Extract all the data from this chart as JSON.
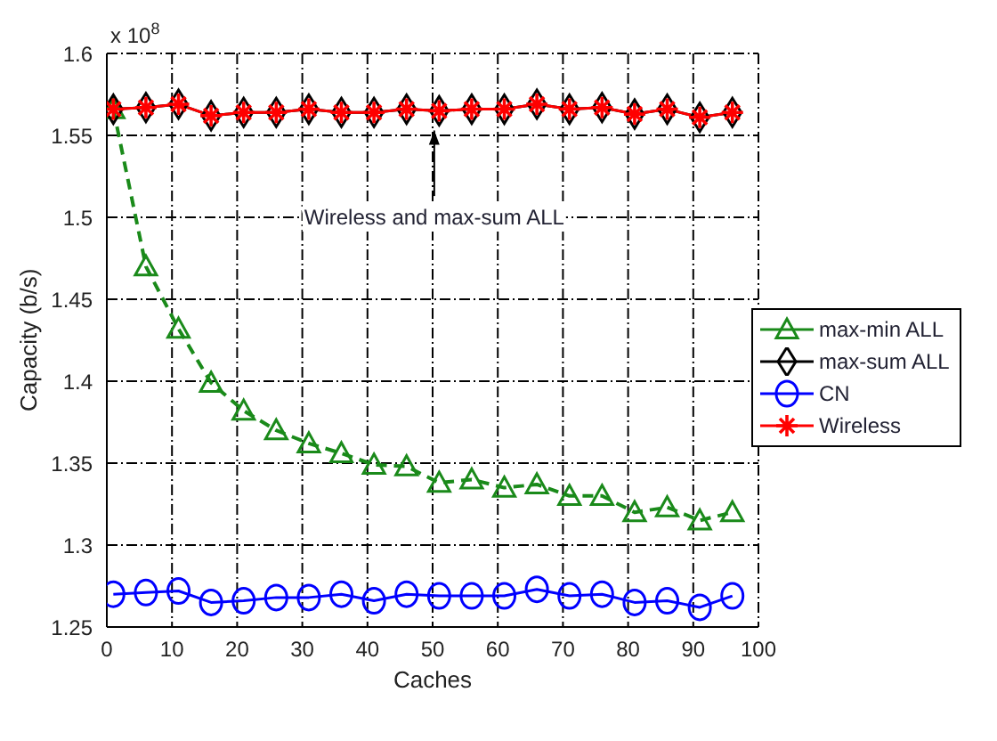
{
  "chart_data": {
    "type": "line",
    "xlabel": "Caches",
    "ylabel": "Capacity (b/s)",
    "x": [
      1,
      6,
      11,
      16,
      21,
      26,
      31,
      36,
      41,
      46,
      51,
      56,
      61,
      66,
      71,
      76,
      81,
      86,
      91,
      96
    ],
    "xlim": [
      0,
      100
    ],
    "xticks": [
      0,
      10,
      20,
      30,
      40,
      50,
      60,
      70,
      80,
      90,
      100
    ],
    "ylim": [
      1.25,
      1.6
    ],
    "yticks": [
      1.25,
      1.3,
      1.35,
      1.4,
      1.45,
      1.5,
      1.55,
      1.6
    ],
    "grid": true,
    "legend": "right",
    "annotations": [
      "x 10$^{8}$",
      "Wireless and max-sum ALL"
    ],
    "series": [
      {
        "name": "max-min ALL",
        "color": "#1a8a1a",
        "marker": "triangle",
        "line_style": "dashed",
        "values": [
          1.566,
          1.47,
          1.432,
          1.399,
          1.382,
          1.37,
          1.362,
          1.356,
          1.349,
          1.348,
          1.338,
          1.34,
          1.335,
          1.337,
          1.33,
          1.33,
          1.32,
          1.323,
          1.315,
          1.32
        ]
      },
      {
        "name": "max-sum ALL",
        "color": "#000000",
        "marker": "diamond",
        "line_style": "solid",
        "values": [
          1.566,
          1.567,
          1.569,
          1.562,
          1.564,
          1.564,
          1.566,
          1.564,
          1.564,
          1.566,
          1.565,
          1.566,
          1.566,
          1.569,
          1.566,
          1.567,
          1.563,
          1.566,
          1.561,
          1.564
        ]
      },
      {
        "name": "CN",
        "color": "#0000ff",
        "marker": "circle",
        "line_style": "solid",
        "values": [
          1.27,
          1.271,
          1.272,
          1.265,
          1.266,
          1.268,
          1.268,
          1.27,
          1.266,
          1.27,
          1.269,
          1.269,
          1.269,
          1.273,
          1.269,
          1.27,
          1.265,
          1.266,
          1.262,
          1.269
        ]
      },
      {
        "name": "Wireless",
        "color": "#ff0000",
        "marker": "cross",
        "line_style": "solid",
        "values": [
          1.566,
          1.567,
          1.569,
          1.562,
          1.564,
          1.564,
          1.566,
          1.564,
          1.564,
          1.566,
          1.565,
          1.566,
          1.566,
          1.569,
          1.566,
          1.567,
          1.563,
          1.566,
          1.561,
          1.564
        ]
      }
    ]
  }
}
